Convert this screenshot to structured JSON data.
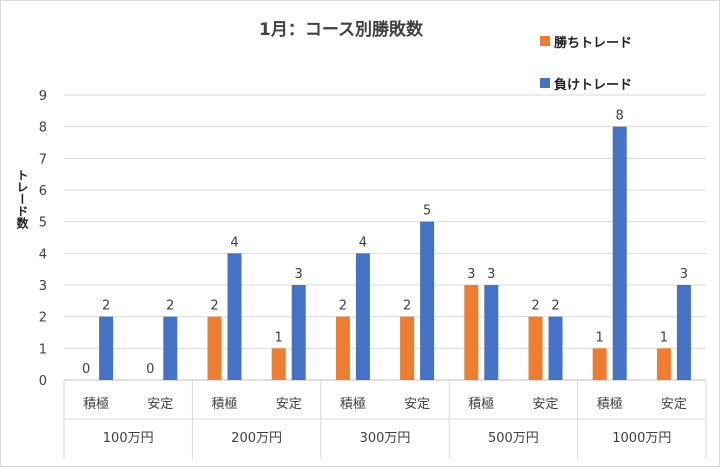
{
  "chart_data": {
    "type": "bar",
    "title": "1月：コース別勝敗数",
    "ylabel": "トレード数",
    "xlabel": "",
    "ylim": [
      0,
      9
    ],
    "yticks": [
      0,
      1,
      2,
      3,
      4,
      5,
      6,
      7,
      8,
      9
    ],
    "grid": true,
    "legend_position": "top-right",
    "groups": [
      {
        "label": "100万円",
        "categories": [
          "積極",
          "安定"
        ]
      },
      {
        "label": "200万円",
        "categories": [
          "積極",
          "安定"
        ]
      },
      {
        "label": "300万円",
        "categories": [
          "積極",
          "安定"
        ]
      },
      {
        "label": "500万円",
        "categories": [
          "積極",
          "安定"
        ]
      },
      {
        "label": "1000万円",
        "categories": [
          "積極",
          "安定"
        ]
      }
    ],
    "series": [
      {
        "name": "勝ちトレード",
        "color": "#ed7d31",
        "values": [
          0,
          0,
          2,
          1,
          2,
          2,
          3,
          2,
          1,
          1
        ]
      },
      {
        "name": "負けトレード",
        "color": "#4472c4",
        "values": [
          2,
          2,
          4,
          3,
          4,
          5,
          3,
          2,
          8,
          3
        ]
      }
    ]
  }
}
